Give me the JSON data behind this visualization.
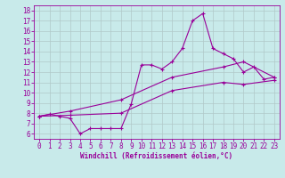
{
  "bg_color": "#c8eaea",
  "line_color": "#990099",
  "grid_color": "#b0c8c8",
  "xlim": [
    -0.5,
    23.5
  ],
  "ylim": [
    5.5,
    18.5
  ],
  "xticks": [
    0,
    1,
    2,
    3,
    4,
    5,
    6,
    7,
    8,
    9,
    10,
    11,
    12,
    13,
    14,
    15,
    16,
    17,
    18,
    19,
    20,
    21,
    22,
    23
  ],
  "yticks": [
    6,
    7,
    8,
    9,
    10,
    11,
    12,
    13,
    14,
    15,
    16,
    17,
    18
  ],
  "xlabel": "Windchill (Refroidissement éolien,°C)",
  "line1_x": [
    0,
    1,
    2,
    3,
    4,
    5,
    6,
    7,
    8,
    9,
    10,
    11,
    12,
    13,
    14,
    15,
    16,
    17,
    18,
    19,
    20,
    21,
    22,
    23
  ],
  "line1_y": [
    7.7,
    7.9,
    7.7,
    7.5,
    6.0,
    6.5,
    6.5,
    6.5,
    6.5,
    8.9,
    12.7,
    12.7,
    12.3,
    13.0,
    14.3,
    17.0,
    17.7,
    14.3,
    13.8,
    13.3,
    12.0,
    12.5,
    11.3,
    11.5
  ],
  "line2_x": [
    0,
    3,
    8,
    13,
    18,
    20,
    23
  ],
  "line2_y": [
    7.7,
    8.2,
    9.3,
    11.5,
    12.5,
    13.0,
    11.5
  ],
  "line3_x": [
    0,
    3,
    8,
    13,
    18,
    20,
    23
  ],
  "line3_y": [
    7.7,
    7.8,
    8.0,
    10.2,
    11.0,
    10.8,
    11.2
  ],
  "tick_fontsize": 5.5,
  "xlabel_fontsize": 5.5
}
